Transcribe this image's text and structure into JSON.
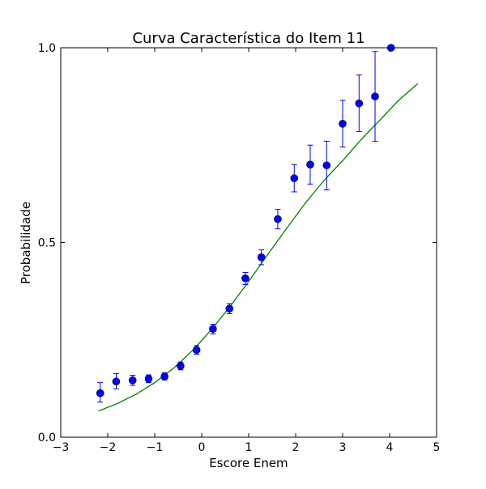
{
  "chart_data": {
    "type": "scatter",
    "title": "Curva Característica do Item 11",
    "xlabel": "Escore Enem",
    "ylabel": "Probabilidade",
    "xlim": [
      -3,
      5
    ],
    "ylim": [
      0.0,
      1.0
    ],
    "x_ticks": [
      -3,
      -2,
      -1,
      0,
      1,
      2,
      3,
      4,
      5
    ],
    "x_tick_labels": [
      "−3",
      "−2",
      "−1",
      "0",
      "1",
      "2",
      "3",
      "4",
      "5"
    ],
    "y_ticks": [
      0.0,
      0.5,
      1.0
    ],
    "y_tick_labels": [
      "0.0",
      "0.5",
      "1.0"
    ],
    "grid": false,
    "series": [
      {
        "kind": "points-with-errorbars",
        "color": "#0000ff",
        "x": [
          -2.16,
          -1.82,
          -1.47,
          -1.13,
          -0.79,
          -0.45,
          -0.11,
          0.24,
          0.59,
          0.93,
          1.27,
          1.62,
          1.97,
          2.31,
          2.66,
          3.0,
          3.35,
          3.69,
          4.03
        ],
        "y": [
          0.113,
          0.143,
          0.146,
          0.15,
          0.156,
          0.183,
          0.224,
          0.278,
          0.33,
          0.408,
          0.462,
          0.56,
          0.665,
          0.7,
          0.698,
          0.805,
          0.857,
          0.875,
          1.0
        ],
        "y_low": [
          0.09,
          0.124,
          0.133,
          0.14,
          0.147,
          0.173,
          0.213,
          0.265,
          0.317,
          0.392,
          0.443,
          0.535,
          0.63,
          0.65,
          0.635,
          0.745,
          0.785,
          0.76,
          1.0
        ],
        "y_high": [
          0.14,
          0.163,
          0.159,
          0.16,
          0.165,
          0.193,
          0.235,
          0.29,
          0.343,
          0.423,
          0.481,
          0.585,
          0.7,
          0.75,
          0.76,
          0.865,
          0.93,
          0.99,
          1.0
        ]
      },
      {
        "kind": "fitted-curve",
        "color": "#008000",
        "x": [
          -2.2,
          -1.8,
          -1.4,
          -1.0,
          -0.6,
          -0.2,
          0.2,
          0.6,
          1.0,
          1.4,
          1.8,
          2.2,
          2.6,
          3.0,
          3.4,
          3.8,
          4.2,
          4.6
        ],
        "y": [
          0.067,
          0.086,
          0.11,
          0.14,
          0.177,
          0.222,
          0.275,
          0.335,
          0.4,
          0.468,
          0.535,
          0.6,
          0.659,
          0.71,
          0.765,
          0.815,
          0.866,
          0.908
        ]
      }
    ]
  }
}
